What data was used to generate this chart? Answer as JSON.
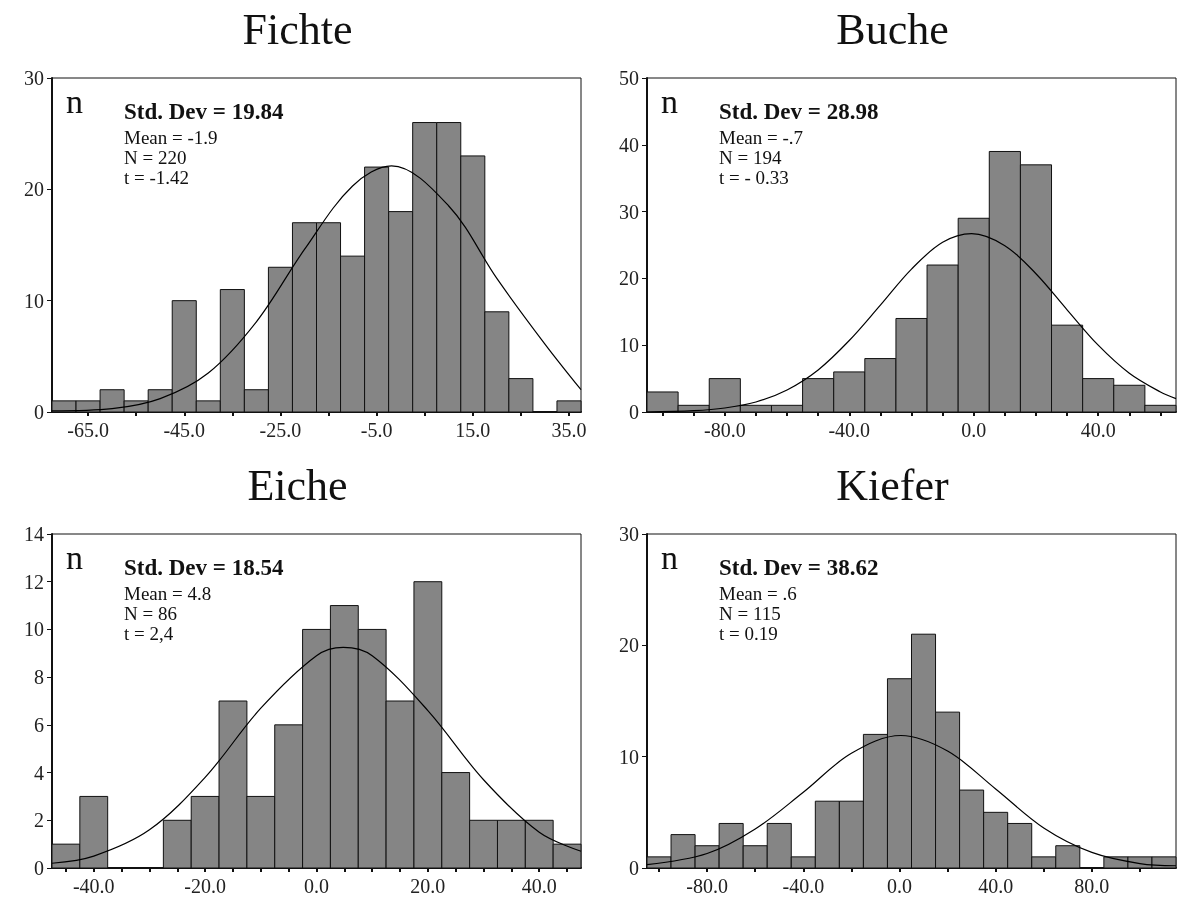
{
  "chart_data": [
    {
      "type": "histogram",
      "title": "Fichte",
      "ylabel": "n",
      "annotations": [
        "Std. Dev = 19.84",
        "Mean = -1.9",
        "N = 220",
        "t = -1.42"
      ],
      "grid": false,
      "xlim": [
        -72.5,
        37.5
      ],
      "ylim": [
        0,
        30
      ],
      "yticks": [
        0,
        10,
        20,
        30
      ],
      "xticks": [
        {
          "value": -65,
          "label": "-65.0"
        },
        {
          "value": -55,
          "label": null
        },
        {
          "value": -45,
          "label": "-45.0"
        },
        {
          "value": -35,
          "label": null
        },
        {
          "value": -25,
          "label": "-25.0"
        },
        {
          "value": -15,
          "label": null
        },
        {
          "value": -5,
          "label": "-5.0"
        },
        {
          "value": 5,
          "label": null
        },
        {
          "value": 15,
          "label": "15.0"
        },
        {
          "value": 25,
          "label": null
        },
        {
          "value": 35,
          "label": "35.0"
        }
      ],
      "series": [
        {
          "type": "histogram",
          "color": "#858585",
          "bins": [
            -72.5,
            -67.5,
            -62.5,
            -57.5,
            -52.5,
            -47.5,
            -42.5,
            -37.5,
            -32.5,
            -27.5,
            -22.5,
            -17.5,
            -12.5,
            -7.5,
            -2.5,
            2.5,
            7.5,
            12.5,
            17.5,
            22.5,
            27.5,
            32.5,
            37.5
          ],
          "values": [
            1,
            1,
            2,
            1,
            2,
            10,
            1,
            11,
            2,
            13,
            17,
            17,
            14,
            22,
            18,
            26,
            26,
            23,
            9,
            3,
            0,
            1
          ]
        },
        {
          "type": "line",
          "color": "#000000",
          "x": [
            -72.5,
            -60,
            -50,
            -40,
            -30,
            -20,
            -10,
            -1.9,
            10,
            20,
            30,
            37.5
          ],
          "values": [
            0.1,
            0.3,
            1.2,
            3.5,
            8.1,
            14.6,
            20.3,
            22.1,
            18.5,
            12.0,
            6.1,
            2.0
          ]
        }
      ]
    },
    {
      "type": "histogram",
      "title": "Buche",
      "ylabel": "n",
      "annotations": [
        "Std. Dev = 28.98",
        "Mean = -.7",
        "N = 194",
        "t = - 0.33"
      ],
      "grid": false,
      "xlim": [
        -105,
        65
      ],
      "ylim": [
        0,
        50
      ],
      "yticks": [
        0,
        10,
        20,
        30,
        40,
        50
      ],
      "xticks": [
        {
          "value": -100,
          "label": null
        },
        {
          "value": -90,
          "label": null
        },
        {
          "value": -80,
          "label": "-80.0"
        },
        {
          "value": -70,
          "label": null
        },
        {
          "value": -60,
          "label": null
        },
        {
          "value": -50,
          "label": null
        },
        {
          "value": -40,
          "label": "-40.0"
        },
        {
          "value": -30,
          "label": null
        },
        {
          "value": -20,
          "label": null
        },
        {
          "value": -10,
          "label": null
        },
        {
          "value": 0,
          "label": "0.0"
        },
        {
          "value": 10,
          "label": null
        },
        {
          "value": 20,
          "label": null
        },
        {
          "value": 30,
          "label": null
        },
        {
          "value": 40,
          "label": "40.0"
        },
        {
          "value": 50,
          "label": null
        },
        {
          "value": 60,
          "label": null
        }
      ],
      "series": [
        {
          "type": "histogram",
          "color": "#858585",
          "bins": [
            -105,
            -95,
            -85,
            -75,
            -65,
            -55,
            -45,
            -35,
            -25,
            -15,
            -5,
            5,
            15,
            25,
            35,
            45,
            55,
            65
          ],
          "values": [
            3,
            1,
            5,
            1,
            1,
            5,
            6,
            8,
            14,
            22,
            29,
            39,
            37,
            13,
            5,
            4,
            1
          ]
        },
        {
          "type": "line",
          "color": "#000000",
          "x": [
            -105,
            -90,
            -80,
            -70,
            -60,
            -50,
            -40,
            -30,
            -20,
            -10,
            -0.7,
            10,
            20,
            30,
            40,
            50,
            60,
            65
          ],
          "values": [
            0.0,
            0.2,
            0.6,
            1.5,
            3.3,
            6.3,
            10.7,
            16.0,
            21.4,
            25.4,
            26.7,
            24.9,
            20.7,
            15.3,
            10.0,
            5.8,
            3.0,
            2.0
          ]
        }
      ]
    },
    {
      "type": "histogram",
      "title": "Eiche",
      "ylabel": "n",
      "annotations": [
        "Std. Dev = 18.54",
        "Mean = 4.8",
        "N = 86",
        "t = 2,4"
      ],
      "grid": false,
      "xlim": [
        -47.5,
        47.5
      ],
      "ylim": [
        0,
        14
      ],
      "yticks": [
        0,
        2,
        4,
        6,
        8,
        10,
        12,
        14
      ],
      "xticks": [
        {
          "value": -45,
          "label": null
        },
        {
          "value": -40,
          "label": "-40.0"
        },
        {
          "value": -35,
          "label": null
        },
        {
          "value": -30,
          "label": null
        },
        {
          "value": -25,
          "label": null
        },
        {
          "value": -20,
          "label": "-20.0"
        },
        {
          "value": -15,
          "label": null
        },
        {
          "value": -10,
          "label": null
        },
        {
          "value": -5,
          "label": null
        },
        {
          "value": 0,
          "label": "0.0"
        },
        {
          "value": 5,
          "label": null
        },
        {
          "value": 10,
          "label": null
        },
        {
          "value": 15,
          "label": null
        },
        {
          "value": 20,
          "label": "20.0"
        },
        {
          "value": 25,
          "label": null
        },
        {
          "value": 30,
          "label": null
        },
        {
          "value": 35,
          "label": null
        },
        {
          "value": 40,
          "label": "40.0"
        },
        {
          "value": 45,
          "label": null
        }
      ],
      "series": [
        {
          "type": "histogram",
          "color": "#858585",
          "bins": [
            -47.5,
            -42.5,
            -37.5,
            -32.5,
            -27.5,
            -22.5,
            -17.5,
            -12.5,
            -7.5,
            -2.5,
            2.5,
            7.5,
            12.5,
            17.5,
            22.5,
            27.5,
            32.5,
            37.5,
            42.5,
            47.5
          ],
          "values": [
            1,
            3,
            0,
            0,
            2,
            3,
            7,
            3,
            6,
            10,
            11,
            10,
            7,
            12,
            4,
            2,
            2,
            2,
            1
          ]
        },
        {
          "type": "line",
          "color": "#000000",
          "x": [
            -47.5,
            -40,
            -30,
            -20,
            -10,
            0,
            4.8,
            10,
            20,
            30,
            40,
            47.5
          ],
          "values": [
            0.2,
            0.5,
            1.6,
            3.8,
            6.7,
            8.9,
            9.25,
            8.9,
            6.6,
            3.7,
            1.5,
            0.7
          ]
        }
      ]
    },
    {
      "type": "histogram",
      "title": "Kiefer",
      "ylabel": "n",
      "annotations": [
        "Std. Dev = 38.62",
        "Mean = .6",
        "N = 115",
        "t = 0.19"
      ],
      "grid": false,
      "xlim": [
        -105,
        115
      ],
      "ylim": [
        0,
        30
      ],
      "yticks": [
        0,
        10,
        20,
        30
      ],
      "xticks": [
        {
          "value": -100,
          "label": null
        },
        {
          "value": -80,
          "label": "-80.0"
        },
        {
          "value": -60,
          "label": null
        },
        {
          "value": -40,
          "label": "-40.0"
        },
        {
          "value": -20,
          "label": null
        },
        {
          "value": 0,
          "label": "0.0"
        },
        {
          "value": 20,
          "label": null
        },
        {
          "value": 40,
          "label": "40.0"
        },
        {
          "value": 60,
          "label": null
        },
        {
          "value": 80,
          "label": "80.0"
        },
        {
          "value": 100,
          "label": null
        }
      ],
      "series": [
        {
          "type": "histogram",
          "color": "#858585",
          "bins": [
            -105,
            -95,
            -85,
            -75,
            -65,
            -55,
            -45,
            -35,
            -25,
            -15,
            -5,
            5,
            15,
            25,
            35,
            45,
            55,
            65,
            75,
            85,
            95,
            105,
            115
          ],
          "values": [
            1,
            3,
            2,
            4,
            2,
            4,
            1,
            6,
            6,
            12,
            17,
            21,
            14,
            7,
            5,
            4,
            1,
            2,
            0,
            1,
            1,
            1
          ]
        },
        {
          "type": "line",
          "color": "#000000",
          "x": [
            -105,
            -80,
            -60,
            -40,
            -20,
            0.6,
            20,
            40,
            60,
            80,
            100,
            115
          ],
          "values": [
            0.3,
            1.3,
            3.5,
            6.8,
            10.3,
            11.9,
            10.5,
            7.1,
            3.6,
            1.4,
            0.4,
            0.2
          ]
        }
      ]
    }
  ]
}
